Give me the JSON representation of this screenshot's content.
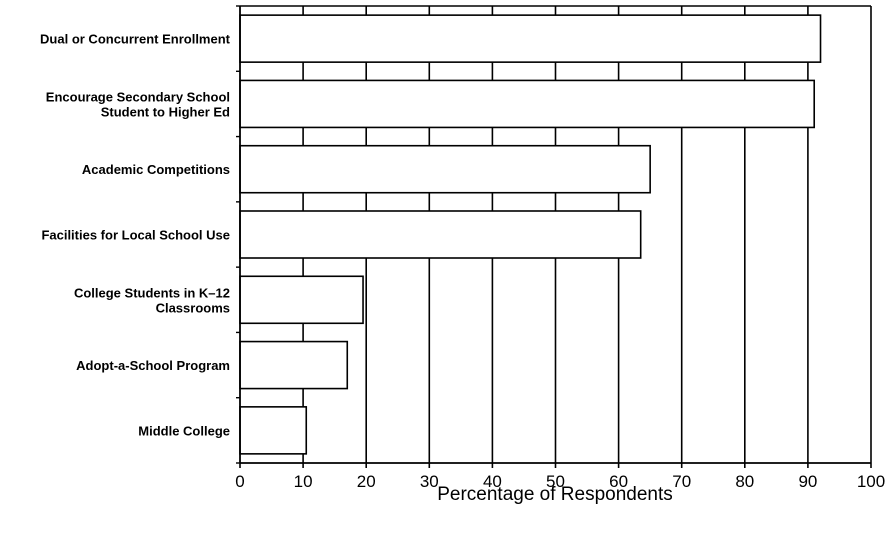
{
  "chart_data": {
    "type": "bar",
    "orientation": "horizontal",
    "categories": [
      [
        "Dual or Concurrent Enrollment"
      ],
      [
        "Encourage Secondary School",
        "Student to Higher Ed"
      ],
      [
        "Academic Competitions"
      ],
      [
        "Facilities for Local School Use"
      ],
      [
        "College Students in K–12",
        "Classrooms"
      ],
      [
        "Adopt-a-School Program"
      ],
      [
        "Middle College"
      ]
    ],
    "values": [
      92,
      91,
      65,
      63.5,
      19.5,
      17,
      10.5
    ],
    "xlabel": "Percentage of Respondents",
    "ylabel": "",
    "xlim": [
      0,
      100
    ],
    "xticks": [
      "0",
      "10",
      "20",
      "30",
      "40",
      "50",
      "60",
      "70",
      "80",
      "90",
      "100"
    ],
    "grid": true,
    "colors": {
      "bar_fill": "#ffffff",
      "line": "#000000",
      "background": "#ffffff"
    }
  }
}
